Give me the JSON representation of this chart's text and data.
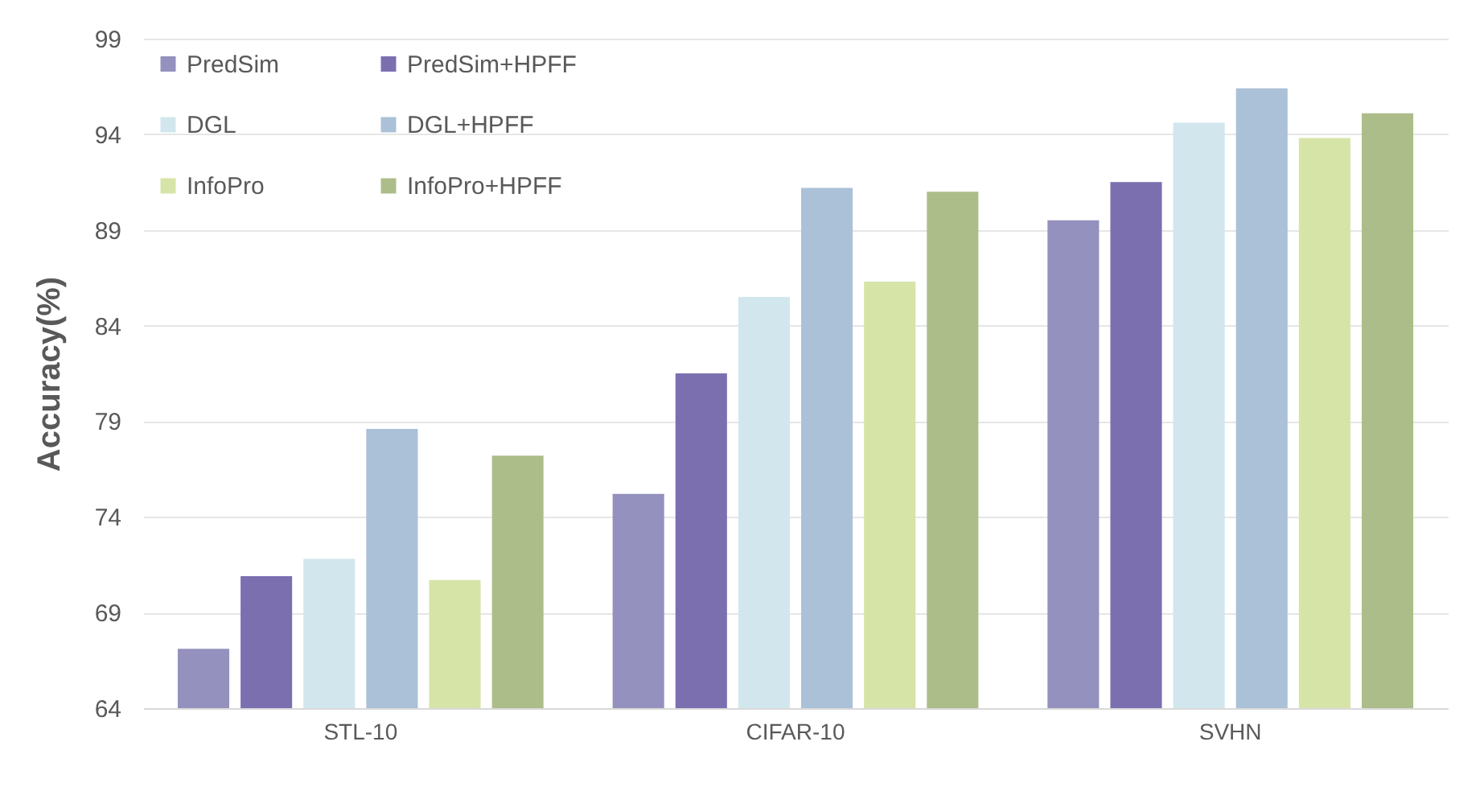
{
  "chart_data": {
    "type": "bar",
    "ylabel": "Accuracy(%)",
    "categories": [
      "STL-10",
      "CIFAR-10",
      "SVHN"
    ],
    "series": [
      {
        "name": "PredSim",
        "color": "#9491be",
        "values": [
          67.1,
          75.2,
          89.5
        ]
      },
      {
        "name": "PredSim+HPFF",
        "color": "#7b6fb0",
        "values": [
          70.9,
          81.5,
          91.5
        ]
      },
      {
        "name": "DGL",
        "color": "#d2e6ee",
        "values": [
          71.8,
          85.5,
          94.6
        ]
      },
      {
        "name": "DGL+HPFF",
        "color": "#abc1d8",
        "values": [
          78.6,
          91.2,
          96.4
        ]
      },
      {
        "name": "InfoPro",
        "color": "#d6e4a8",
        "values": [
          70.7,
          86.3,
          93.8
        ]
      },
      {
        "name": "InfoPro+HPFF",
        "color": "#adbd8a",
        "values": [
          77.2,
          91.0,
          95.1
        ]
      }
    ],
    "ylim": [
      64,
      99
    ],
    "yticks": [
      64,
      69,
      74,
      79,
      84,
      89,
      94,
      99
    ],
    "grid": "y",
    "legend": "top left"
  }
}
